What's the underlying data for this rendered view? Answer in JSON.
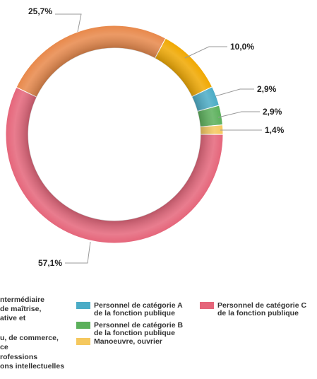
{
  "chart_data": {
    "type": "donut",
    "categories": [
      null,
      null,
      "Personnel de catégorie A de la fonction publique",
      "Personnel de catégorie B de la fonction publique",
      "Manoeuvre, ouvrier",
      "Personnel de catégorie C de la fonction publique"
    ],
    "values": [
      25.7,
      10.0,
      2.9,
      2.9,
      1.4,
      57.1
    ],
    "value_labels": [
      "25,7%",
      "10,0%",
      "2,9%",
      "2,9%",
      "1,4%",
      "57,1%"
    ],
    "colors": [
      "#e8884a",
      "#f0a800",
      "#4bacc6",
      "#5bb05b",
      "#f5c85e",
      "#e5657a"
    ],
    "legend_cut": [
      [
        "ntermédiaire",
        "de maîtrise,",
        "ative et"
      ],
      [
        "u, de commerce,",
        "ce"
      ],
      [
        "rofessions",
        "ons intellectuelles"
      ]
    ]
  }
}
